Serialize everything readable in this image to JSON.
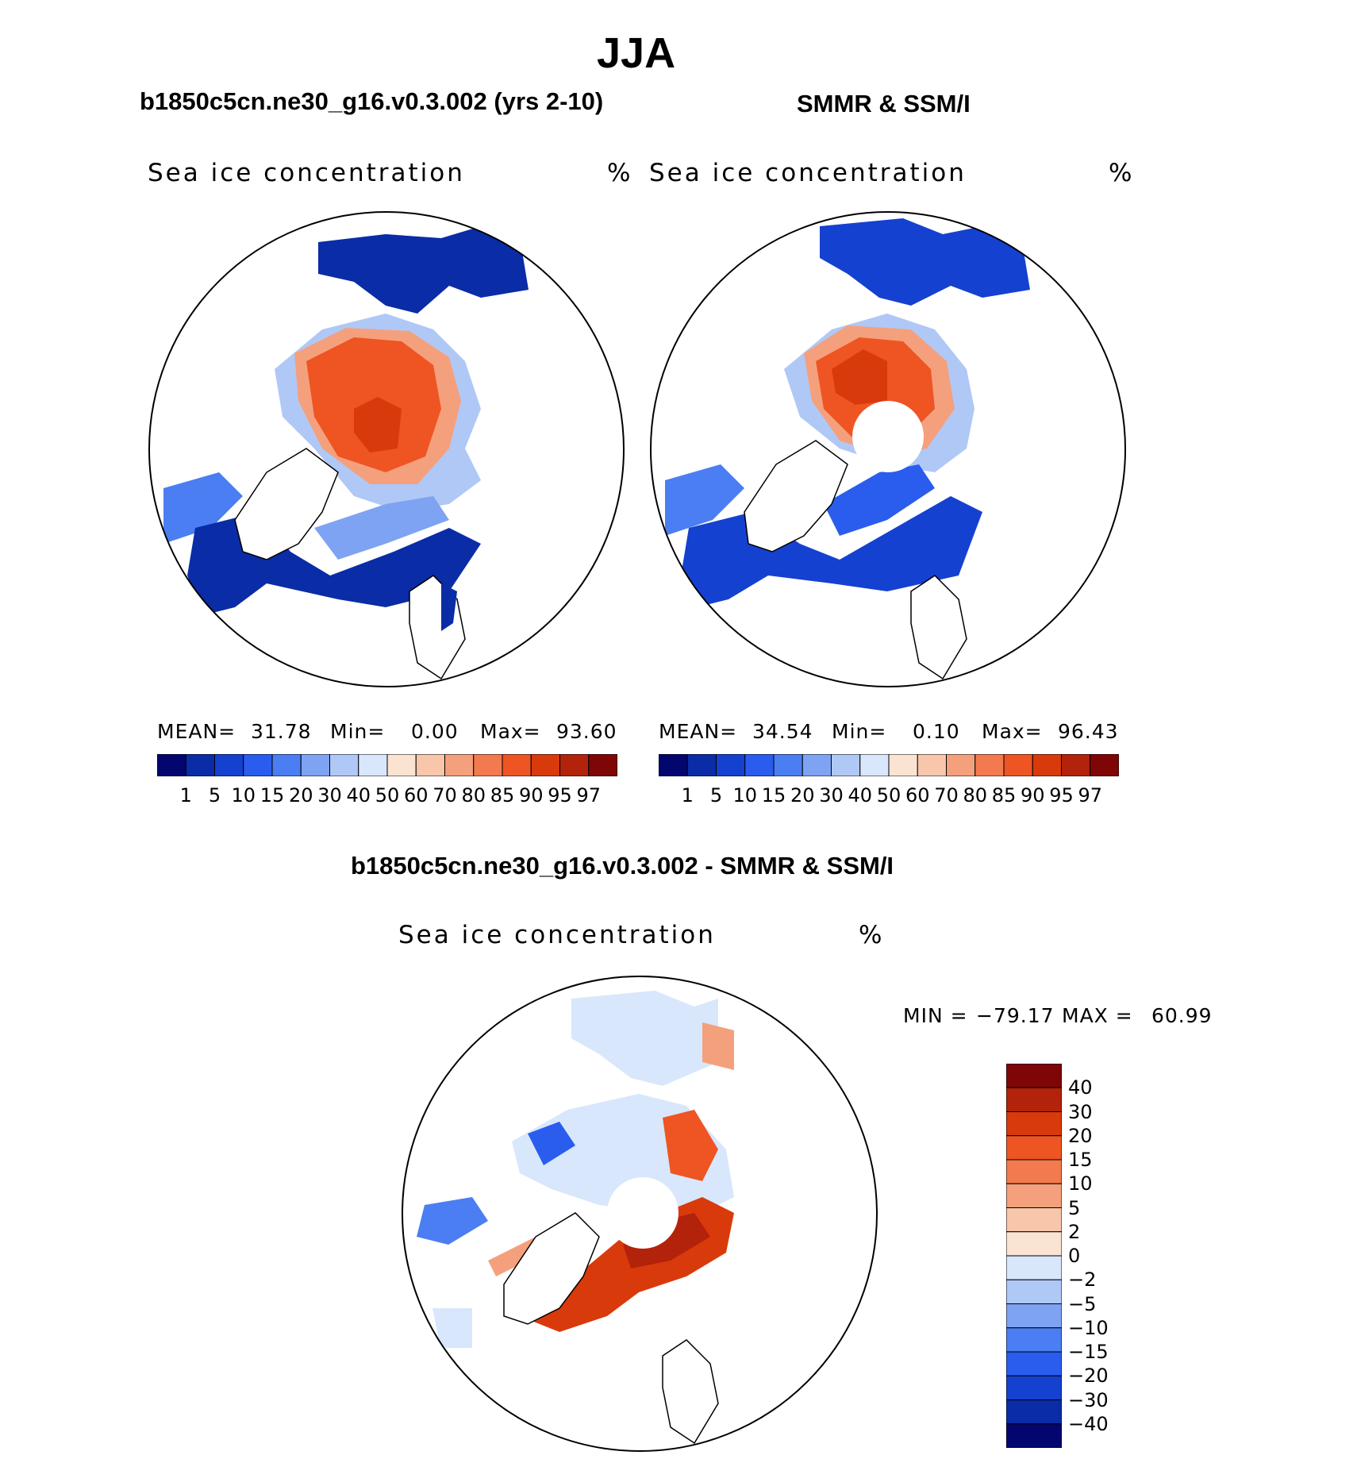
{
  "title": "JJA",
  "panels": [
    {
      "id": "model",
      "heading": "b1850c5cn.ne30_g16.v0.3.002 (yrs 2-10)",
      "label": "Sea ice concentration",
      "unit": "%",
      "stats": {
        "mean_label": "MEAN=",
        "mean": "31.78",
        "min_label": "Min=",
        "min": "0.00",
        "max_label": "Max=",
        "max": "93.60"
      }
    },
    {
      "id": "obs",
      "heading": "SMMR & SSM/I",
      "label": "Sea ice concentration",
      "unit": "%",
      "stats": {
        "mean_label": "MEAN=",
        "mean": "34.54",
        "min_label": "Min=",
        "min": "0.10",
        "max_label": "Max=",
        "max": "96.43"
      }
    }
  ],
  "main_colorbar": {
    "colors": [
      "#03066e",
      "#0a2ca6",
      "#1541d0",
      "#2a5cee",
      "#4a7ef2",
      "#7ea3f2",
      "#b0c8f6",
      "#d8e7fb",
      "#fbe3d2",
      "#f8c6ab",
      "#f5a07c",
      "#f27a4e",
      "#ef5423",
      "#d93a0c",
      "#b3220a",
      "#7e0606"
    ],
    "ticks": [
      "1",
      "5",
      "10",
      "15",
      "20",
      "30",
      "40",
      "50",
      "60",
      "70",
      "80",
      "85",
      "90",
      "95",
      "97"
    ]
  },
  "diff": {
    "heading": "b1850c5cn.ne30_g16.v0.3.002 - SMMR & SSM/I",
    "label": "Sea ice concentration",
    "unit": "%",
    "minmax": {
      "min_label": "MIN =",
      "min": "−79.17",
      "max_label": "MAX =",
      "max": "60.99"
    },
    "colorbar": {
      "colors": [
        "#7e0606",
        "#b3220a",
        "#d93a0c",
        "#ef5423",
        "#f27a4e",
        "#f5a07c",
        "#f8c6ab",
        "#fbe3d2",
        "#d8e7fb",
        "#b0c8f6",
        "#7ea3f2",
        "#4a7ef2",
        "#2a5cee",
        "#1541d0",
        "#0a2ca6",
        "#03066e"
      ],
      "ticks": [
        "40",
        "30",
        "20",
        "15",
        "10",
        "5",
        "2",
        "0",
        "−2",
        "−5",
        "−10",
        "−15",
        "−20",
        "−30",
        "−40"
      ]
    }
  }
}
